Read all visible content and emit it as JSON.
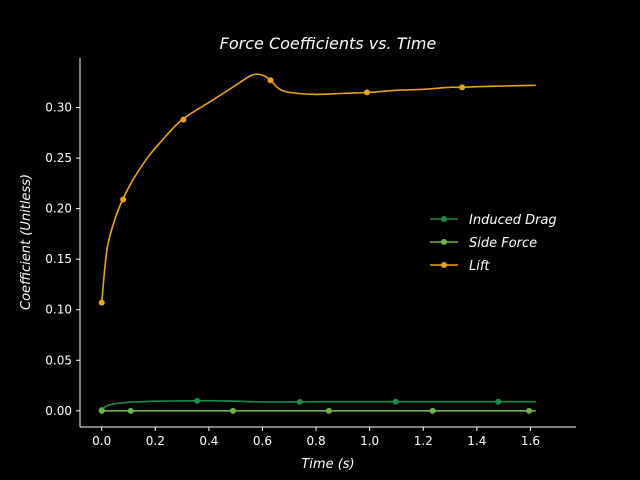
{
  "chart_data": {
    "type": "line",
    "title": "Force Coefficients vs. Time",
    "xlabel": "Time (s)",
    "ylabel": "Coefficient (Unitless)",
    "xlim": [
      -0.081,
      1.77
    ],
    "ylim": [
      -0.016,
      0.349
    ],
    "xticks": [
      "0.0",
      "0.2",
      "0.4",
      "0.6",
      "0.8",
      "1.0",
      "1.2",
      "1.4",
      "1.6"
    ],
    "yticks": [
      "0.00",
      "0.05",
      "0.10",
      "0.15",
      "0.20",
      "0.25",
      "0.30"
    ],
    "grid": false,
    "legend_position": "center-right",
    "background": "#000000",
    "axis_color": "#ffffff",
    "series": [
      {
        "name": "Induced Drag",
        "color": "#1f8a4c",
        "x": [
          0.0,
          0.02,
          0.05,
          0.1,
          0.15,
          0.2,
          0.3,
          0.4,
          0.5,
          0.6,
          0.7,
          0.8,
          0.9,
          1.0,
          1.1,
          1.2,
          1.3,
          1.4,
          1.5,
          1.62
        ],
        "y": [
          0.001,
          0.005,
          0.007,
          0.0085,
          0.009,
          0.0095,
          0.0098,
          0.01,
          0.0095,
          0.0088,
          0.0088,
          0.009,
          0.009,
          0.009,
          0.009,
          0.009,
          0.009,
          0.009,
          0.009,
          0.009
        ],
        "markers_x": [
          0.0,
          0.356,
          0.739,
          1.097,
          1.48
        ],
        "markers_y": [
          0.001,
          0.0099,
          0.0088,
          0.009,
          0.009
        ]
      },
      {
        "name": "Side Force",
        "color": "#6fb34a",
        "x": [
          0.0,
          1.62
        ],
        "y": [
          0.0,
          0.0
        ],
        "markers_x": [
          0.0,
          0.108,
          0.49,
          0.848,
          1.235,
          1.595
        ],
        "markers_y": [
          0.0,
          0.0,
          0.0,
          0.0,
          0.0,
          0.0
        ]
      },
      {
        "name": "Lift",
        "color": "#e8a317",
        "x": [
          0.0,
          0.02,
          0.05,
          0.08,
          0.12,
          0.17,
          0.22,
          0.3,
          0.4,
          0.5,
          0.56,
          0.6,
          0.63,
          0.66,
          0.7,
          0.8,
          0.9,
          1.0,
          1.1,
          1.2,
          1.3,
          1.34,
          1.45,
          1.62
        ],
        "y": [
          0.107,
          0.16,
          0.19,
          0.21,
          0.23,
          0.25,
          0.266,
          0.288,
          0.305,
          0.322,
          0.332,
          0.332,
          0.327,
          0.319,
          0.315,
          0.313,
          0.314,
          0.315,
          0.317,
          0.318,
          0.32,
          0.32,
          0.321,
          0.322
        ],
        "markers_x": [
          0.0,
          0.08,
          0.305,
          0.63,
          0.99,
          1.345
        ],
        "markers_y": [
          0.107,
          0.209,
          0.288,
          0.327,
          0.315,
          0.32
        ]
      }
    ]
  }
}
